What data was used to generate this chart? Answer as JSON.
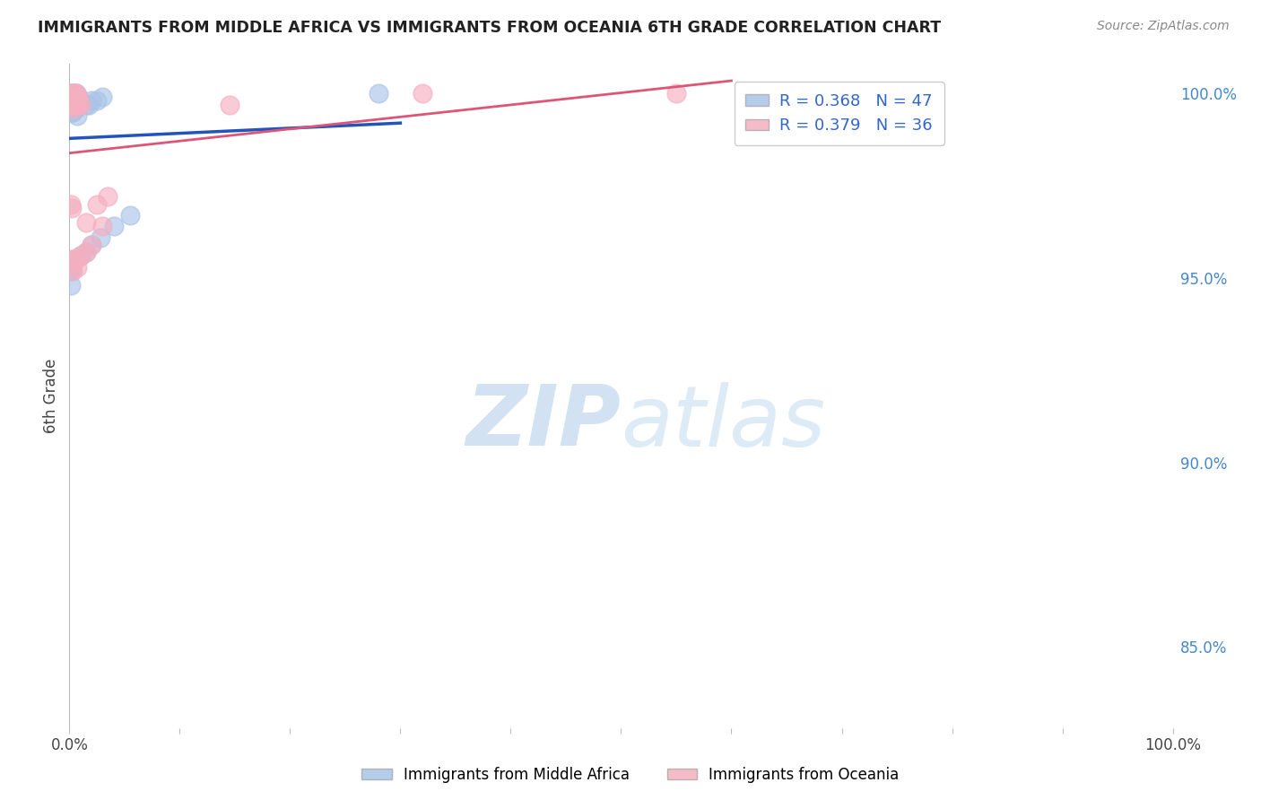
{
  "title": "IMMIGRANTS FROM MIDDLE AFRICA VS IMMIGRANTS FROM OCEANIA 6TH GRADE CORRELATION CHART",
  "source": "Source: ZipAtlas.com",
  "ylabel": "6th Grade",
  "right_ytick_vals": [
    0.85,
    0.9,
    0.95,
    1.0
  ],
  "right_ytick_labels": [
    "85.0%",
    "90.0%",
    "95.0%",
    "100.0%"
  ],
  "legend_blue_label": "R = 0.368   N = 47",
  "legend_pink_label": "R = 0.379   N = 36",
  "blue_color": "#aac4e8",
  "pink_color": "#f5afc0",
  "blue_line_color": "#2255bb",
  "pink_line_color": "#dd5577",
  "blue_scatter_x": [
    0.002,
    0.003,
    0.004,
    0.005,
    0.006,
    0.002,
    0.004,
    0.003,
    0.005,
    0.007,
    0.003,
    0.004,
    0.005,
    0.006,
    0.007,
    0.008,
    0.003,
    0.004,
    0.005,
    0.006,
    0.008,
    0.01,
    0.003,
    0.004,
    0.006,
    0.015,
    0.018,
    0.02,
    0.025,
    0.03,
    0.002,
    0.003,
    0.005,
    0.007,
    0.01,
    0.015,
    0.02,
    0.028,
    0.04,
    0.055,
    0.001,
    0.002,
    0.003,
    0.001,
    0.001,
    0.28,
    0.68
  ],
  "blue_scatter_y": [
    1.0,
    1.0,
    1.0,
    1.0,
    1.0,
    0.999,
    0.999,
    0.999,
    0.999,
    0.999,
    0.998,
    0.998,
    0.998,
    0.998,
    0.998,
    0.999,
    0.997,
    0.997,
    0.997,
    0.997,
    0.997,
    0.998,
    0.996,
    0.996,
    0.996,
    0.997,
    0.997,
    0.998,
    0.998,
    0.999,
    0.995,
    0.995,
    0.996,
    0.994,
    0.956,
    0.957,
    0.959,
    0.961,
    0.964,
    0.967,
    0.953,
    0.954,
    0.955,
    0.952,
    0.948,
    1.0,
    0.997
  ],
  "pink_scatter_x": [
    0.003,
    0.004,
    0.005,
    0.006,
    0.003,
    0.004,
    0.005,
    0.006,
    0.007,
    0.004,
    0.005,
    0.006,
    0.007,
    0.008,
    0.004,
    0.005,
    0.006,
    0.008,
    0.01,
    0.003,
    0.001,
    0.002,
    0.004,
    0.006,
    0.01,
    0.015,
    0.02,
    0.03,
    0.003,
    0.007,
    0.015,
    0.025,
    0.035,
    0.145,
    0.32,
    0.55
  ],
  "pink_scatter_y": [
    1.0,
    1.0,
    1.0,
    1.0,
    0.999,
    0.999,
    0.999,
    0.999,
    0.999,
    0.998,
    0.998,
    0.998,
    0.998,
    0.999,
    0.997,
    0.997,
    0.997,
    0.997,
    0.997,
    0.996,
    0.97,
    0.969,
    0.955,
    0.955,
    0.956,
    0.957,
    0.959,
    0.964,
    0.952,
    0.953,
    0.965,
    0.97,
    0.972,
    0.997,
    1.0,
    1.0
  ],
  "xmin": 0.0,
  "xmax": 1.0,
  "ymin": 0.828,
  "ymax": 1.008,
  "watermark_zip": "ZIP",
  "watermark_atlas": "atlas",
  "background_color": "#ffffff",
  "grid_color": "#cccccc",
  "legend_label_blue": "Immigrants from Middle Africa",
  "legend_label_pink": "Immigrants from Oceania"
}
